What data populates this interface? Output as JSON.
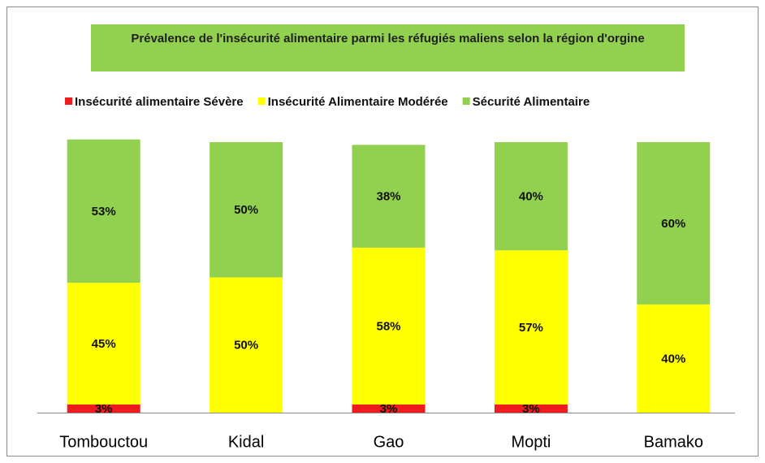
{
  "chart_data": {
    "type": "stacked_bar",
    "title": "Prévalence de l'insécurité alimentaire  parmi les réfugiés maliens selon la région d'orgine",
    "categories": [
      "Tombouctou",
      "Kidal",
      "Gao",
      "Mopti",
      "Bamako"
    ],
    "series": [
      {
        "name": "Insécurité alimentaire Sévère",
        "color": "#ee1c1c",
        "values": [
          3,
          0,
          3,
          3,
          0
        ],
        "value_labels": [
          "3%",
          null,
          "3%",
          "3%",
          null
        ]
      },
      {
        "name": "Insécurité Alimentaire Modérée",
        "color": "#ffff00",
        "values": [
          45,
          50,
          58,
          57,
          40
        ],
        "value_labels": [
          "45%",
          "50%",
          "58%",
          "57%",
          "40%"
        ]
      },
      {
        "name": "Sécurité Alimentaire",
        "color": "#92d050",
        "values": [
          53,
          50,
          38,
          40,
          60
        ],
        "value_labels": [
          "53%",
          "50%",
          "38%",
          "40%",
          "60%"
        ]
      }
    ],
    "ylim": [
      0,
      100
    ]
  }
}
